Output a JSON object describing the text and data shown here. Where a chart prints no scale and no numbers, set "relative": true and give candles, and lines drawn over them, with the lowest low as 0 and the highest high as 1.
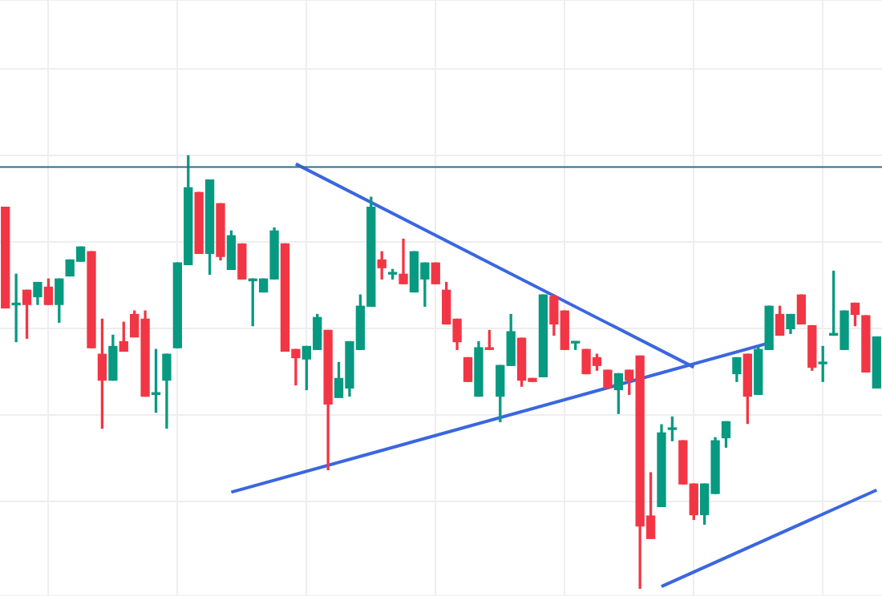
{
  "chart_data": {
    "type": "candlestick",
    "relative": true,
    "grid": true,
    "categories": [
      null,
      null,
      null,
      null,
      null,
      null,
      null,
      null,
      null,
      null,
      null,
      null,
      null,
      null,
      null,
      null,
      null,
      null,
      null,
      null,
      null,
      null,
      null,
      null,
      null,
      null,
      null,
      null,
      null,
      null,
      null,
      null,
      null,
      null,
      null,
      null,
      null,
      null,
      null,
      null,
      null,
      null,
      null,
      null,
      null,
      null,
      null,
      null,
      null,
      null,
      null,
      null,
      null,
      null,
      null,
      null,
      null,
      null,
      null,
      null,
      null,
      null,
      null,
      null,
      null,
      null,
      null,
      null,
      null,
      null,
      null,
      null,
      null,
      null,
      null,
      null,
      null,
      null,
      null,
      null,
      null,
      null
    ],
    "ohlc": [
      [
        0.881,
        0.881,
        0.648,
        0.648
      ],
      [
        0.659,
        0.726,
        0.57,
        0.659
      ],
      [
        0.689,
        0.689,
        0.578,
        0.656
      ],
      [
        0.674,
        0.707,
        0.656,
        0.707
      ],
      [
        0.696,
        0.715,
        0.656,
        0.656
      ],
      [
        0.656,
        0.715,
        0.615,
        0.715
      ],
      [
        0.722,
        0.759,
        0.722,
        0.759
      ],
      [
        0.756,
        0.789,
        0.756,
        0.789
      ],
      [
        0.778,
        0.778,
        0.556,
        0.556
      ],
      [
        0.541,
        0.622,
        0.37,
        0.481
      ],
      [
        0.481,
        0.585,
        0.481,
        0.559
      ],
      [
        0.57,
        0.615,
        0.548,
        0.548
      ],
      [
        0.633,
        0.641,
        0.581,
        0.581
      ],
      [
        0.622,
        0.641,
        0.444,
        0.444
      ],
      [
        0.448,
        0.552,
        0.407,
        0.452
      ],
      [
        0.481,
        0.541,
        0.37,
        0.541
      ],
      [
        0.556,
        0.752,
        0.556,
        0.752
      ],
      [
        0.748,
        1,
        0.748,
        0.926
      ],
      [
        0.915,
        0.915,
        0.774,
        0.774
      ],
      [
        0.774,
        0.944,
        0.726,
        0.944
      ],
      [
        0.889,
        0.889,
        0.759,
        0.767
      ],
      [
        0.737,
        0.826,
        0.737,
        0.815
      ],
      [
        0.796,
        0.796,
        0.715,
        0.715
      ],
      [
        0.711,
        0.715,
        0.607,
        0.715
      ],
      [
        0.685,
        0.715,
        0.685,
        0.715
      ],
      [
        0.715,
        0.833,
        0.715,
        0.826
      ],
      [
        0.796,
        0.796,
        0.548,
        0.548
      ],
      [
        0.552,
        0.552,
        0.47,
        0.533
      ],
      [
        0.53,
        0.559,
        0.459,
        0.559
      ],
      [
        0.552,
        0.633,
        0.552,
        0.626
      ],
      [
        0.596,
        0.596,
        0.274,
        0.426
      ],
      [
        0.441,
        0.522,
        0.441,
        0.485
      ],
      [
        0.463,
        0.57,
        0.444,
        0.57
      ],
      [
        0.552,
        0.678,
        0.552,
        0.652
      ],
      [
        0.652,
        0.904,
        0.652,
        0.881
      ],
      [
        0.759,
        0.778,
        0.715,
        0.741
      ],
      [
        0.73,
        0.737,
        0.715,
        0.73
      ],
      [
        0.726,
        0.807,
        0.704,
        0.704
      ],
      [
        0.685,
        0.778,
        0.685,
        0.778
      ],
      [
        0.715,
        0.752,
        0.652,
        0.752
      ],
      [
        0.752,
        0.752,
        0.704,
        0.704
      ],
      [
        0.689,
        0.707,
        0.611,
        0.611
      ],
      [
        0.622,
        0.622,
        0.552,
        0.57
      ],
      [
        0.533,
        0.533,
        0.478,
        0.478
      ],
      [
        0.444,
        0.57,
        0.444,
        0.556
      ],
      [
        0.556,
        0.596,
        0.552,
        0.552
      ],
      [
        0.444,
        0.515,
        0.385,
        0.515
      ],
      [
        0.515,
        0.633,
        0.515,
        0.593
      ],
      [
        0.578,
        0.578,
        0.467,
        0.481
      ],
      [
        0.485,
        0.485,
        0.478,
        0.478
      ],
      [
        0.489,
        0.678,
        0.489,
        0.678
      ],
      [
        0.674,
        0.678,
        0.585,
        0.611
      ],
      [
        0.641,
        0.641,
        0.552,
        0.552
      ],
      [
        0.567,
        0.57,
        0.552,
        0.57
      ],
      [
        0.552,
        0.552,
        0.496,
        0.496
      ],
      [
        0.533,
        0.541,
        0.504,
        0.515
      ],
      [
        0.504,
        0.504,
        0.463,
        0.463
      ],
      [
        0.459,
        0.496,
        0.404,
        0.496
      ],
      [
        0.504,
        0.504,
        0.448,
        0.481
      ],
      [
        0.537,
        0.537,
        0,
        0.144
      ],
      [
        0.167,
        0.267,
        0.115,
        0.115
      ],
      [
        0.189,
        0.378,
        0.189,
        0.359
      ],
      [
        0.367,
        0.396,
        0.341,
        0.37
      ],
      [
        0.341,
        0.341,
        0.241,
        0.241
      ],
      [
        0.241,
        0.241,
        0.159,
        0.17
      ],
      [
        0.17,
        0.241,
        0.148,
        0.241
      ],
      [
        0.219,
        0.348,
        0.219,
        0.341
      ],
      [
        0.348,
        0.385,
        0.326,
        0.385
      ],
      [
        0.496,
        0.533,
        0.478,
        0.533
      ],
      [
        0.541,
        0.541,
        0.381,
        0.444
      ],
      [
        0.448,
        0.559,
        0.448,
        0.552
      ],
      [
        0.552,
        0.652,
        0.552,
        0.652
      ],
      [
        0.633,
        0.652,
        0.585,
        0.585
      ],
      [
        0.6,
        0.633,
        0.589,
        0.633
      ],
      [
        0.678,
        0.678,
        0.611,
        0.611
      ],
      [
        0.607,
        0.607,
        0.504,
        0.511
      ],
      [
        0.519,
        0.559,
        0.478,
        0.522
      ],
      [
        0.585,
        0.733,
        0.585,
        0.589
      ],
      [
        0.552,
        0.641,
        0.552,
        0.641
      ],
      [
        0.659,
        0.659,
        0.607,
        0.633
      ],
      [
        0.63,
        0.63,
        0.5,
        0.5
      ],
      [
        0.463,
        0.581,
        0.463,
        0.581
      ]
    ],
    "series": [
      {
        "type": "line",
        "color": "#3a66e0",
        "values": [
          null,
          null,
          null,
          null,
          null,
          null,
          null,
          null,
          null,
          null,
          null,
          null,
          null,
          null,
          null,
          null,
          null,
          null,
          null,
          null,
          null,
          null,
          null,
          null,
          null,
          null,
          null,
          0.981,
          null,
          null,
          null,
          null,
          null,
          null,
          null,
          null,
          null,
          null,
          null,
          null,
          null,
          null,
          null,
          null,
          null,
          null,
          null,
          null,
          null,
          null,
          null,
          null,
          null,
          null,
          null,
          null,
          null,
          null,
          null,
          null,
          null,
          null,
          null,
          null,
          0.511,
          null,
          null,
          null,
          null,
          null,
          null,
          null,
          null,
          null,
          null,
          null,
          null,
          null,
          null,
          null,
          null,
          null
        ]
      },
      {
        "type": "line",
        "color": "#3a66e0",
        "values": [
          null,
          null,
          null,
          null,
          null,
          null,
          null,
          null,
          null,
          null,
          null,
          null,
          null,
          null,
          null,
          null,
          null,
          null,
          null,
          null,
          null,
          0.222,
          null,
          null,
          null,
          null,
          null,
          null,
          null,
          null,
          null,
          null,
          null,
          null,
          null,
          null,
          null,
          null,
          null,
          null,
          null,
          null,
          null,
          null,
          null,
          null,
          null,
          null,
          null,
          null,
          null,
          null,
          null,
          null,
          null,
          null,
          null,
          null,
          null,
          null,
          null,
          null,
          null,
          null,
          null,
          null,
          null,
          null,
          null,
          null,
          null,
          0.567,
          null,
          null,
          null,
          null,
          null,
          null,
          null,
          null,
          null,
          null
        ]
      },
      {
        "type": "line",
        "color": "#3a66e0",
        "values": [
          null,
          null,
          null,
          null,
          null,
          null,
          null,
          null,
          null,
          null,
          null,
          null,
          null,
          null,
          null,
          null,
          null,
          null,
          null,
          null,
          null,
          null,
          null,
          null,
          null,
          null,
          null,
          null,
          null,
          null,
          null,
          null,
          null,
          null,
          null,
          null,
          null,
          null,
          null,
          null,
          null,
          null,
          null,
          null,
          null,
          null,
          null,
          null,
          null,
          null,
          null,
          null,
          null,
          null,
          null,
          null,
          null,
          null,
          null,
          null,
          null,
          0.004,
          null,
          null,
          null,
          null,
          null,
          null,
          null,
          null,
          null,
          null,
          null,
          null,
          null,
          null,
          null,
          null,
          null,
          null,
          null,
          0.227
        ]
      }
    ],
    "ref_lines": [
      {
        "axis": "y",
        "value": 0.974,
        "color": "#2b6f86"
      }
    ]
  }
}
